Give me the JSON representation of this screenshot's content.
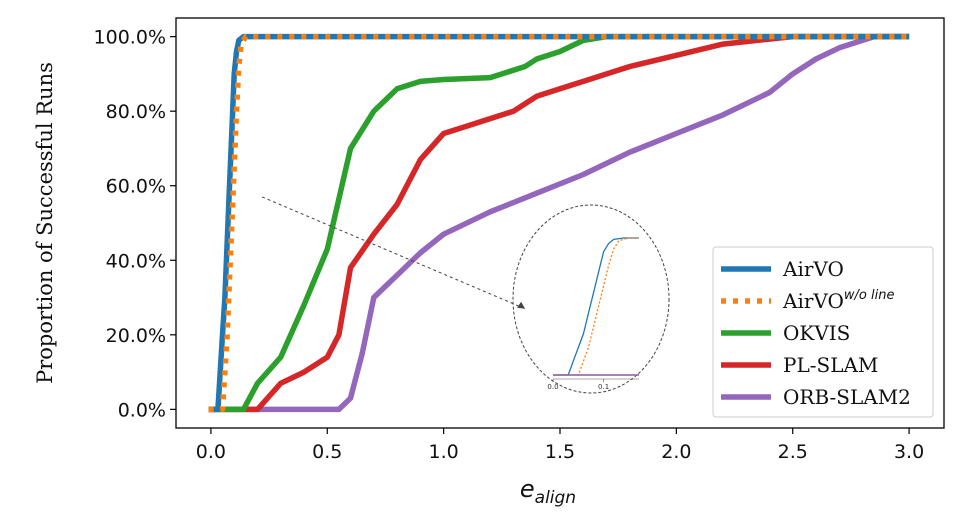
{
  "chart_data": {
    "type": "line",
    "title": "",
    "xlabel": "e",
    "xlabel_sub": "align",
    "ylabel": "Proportion of Successful Runs",
    "xlim": [
      -0.15,
      3.15
    ],
    "ylim": [
      -0.05,
      1.05
    ],
    "xticks": [
      0.0,
      0.5,
      1.0,
      1.5,
      2.0,
      2.5,
      3.0
    ],
    "xtick_labels": [
      "0.0",
      "0.5",
      "1.0",
      "1.5",
      "2.0",
      "2.5",
      "3.0"
    ],
    "yticks": [
      0.0,
      0.2,
      0.4,
      0.6,
      0.8,
      1.0
    ],
    "ytick_labels": [
      "0.0%",
      "20.0%",
      "40.0%",
      "60.0%",
      "80.0%",
      "100.0%"
    ],
    "legend_position": "lower-right",
    "series": [
      {
        "name": "AirVO",
        "label": "AirVO",
        "label_sup": "",
        "color": "#1f77b4",
        "style": "solid",
        "x": [
          -0.01,
          0.03,
          0.04,
          0.05,
          0.06,
          0.07,
          0.08,
          0.09,
          0.1,
          0.11,
          0.12,
          0.14,
          1.7,
          3.0
        ],
        "y": [
          0.0,
          0.0,
          0.1,
          0.2,
          0.3,
          0.45,
          0.6,
          0.75,
          0.9,
          0.96,
          0.99,
          1.0,
          1.0,
          1.0
        ]
      },
      {
        "name": "AirVO w/o line",
        "label": "AirVO",
        "label_sup": "w/o line",
        "color": "#ff7f0e",
        "style": "dotted",
        "x": [
          -0.01,
          0.05,
          0.06,
          0.07,
          0.08,
          0.09,
          0.1,
          0.11,
          0.12,
          0.13,
          0.15,
          1.7,
          3.0
        ],
        "y": [
          0.0,
          0.0,
          0.1,
          0.2,
          0.35,
          0.5,
          0.65,
          0.8,
          0.92,
          0.98,
          1.0,
          1.0,
          1.0
        ]
      },
      {
        "name": "OKVIS",
        "label": "OKVIS",
        "label_sup": "",
        "color": "#2ca02c",
        "style": "solid",
        "x": [
          -0.01,
          0.14,
          0.2,
          0.3,
          0.4,
          0.5,
          0.6,
          0.7,
          0.8,
          0.9,
          1.0,
          1.2,
          1.35,
          1.4,
          1.5,
          1.6,
          1.7,
          3.0
        ],
        "y": [
          0.0,
          0.0,
          0.07,
          0.14,
          0.28,
          0.43,
          0.7,
          0.8,
          0.86,
          0.88,
          0.885,
          0.89,
          0.92,
          0.94,
          0.96,
          0.99,
          1.0,
          1.0
        ]
      },
      {
        "name": "PL-SLAM",
        "label": "PL-SLAM",
        "label_sup": "",
        "color": "#d62728",
        "style": "solid",
        "x": [
          -0.01,
          0.2,
          0.3,
          0.4,
          0.5,
          0.55,
          0.6,
          0.7,
          0.8,
          0.9,
          1.0,
          1.1,
          1.2,
          1.3,
          1.4,
          1.5,
          1.6,
          1.8,
          2.0,
          2.2,
          2.5,
          2.8,
          3.0
        ],
        "y": [
          0.0,
          0.0,
          0.07,
          0.1,
          0.14,
          0.2,
          0.38,
          0.47,
          0.55,
          0.67,
          0.74,
          0.76,
          0.78,
          0.8,
          0.84,
          0.86,
          0.88,
          0.92,
          0.95,
          0.98,
          1.0,
          1.0,
          1.0
        ]
      },
      {
        "name": "ORB-SLAM2",
        "label": "ORB-SLAM2",
        "label_sup": "",
        "color": "#9467bd",
        "style": "solid",
        "x": [
          -0.01,
          0.55,
          0.6,
          0.65,
          0.7,
          0.8,
          0.9,
          1.0,
          1.2,
          1.4,
          1.6,
          1.8,
          2.0,
          2.2,
          2.4,
          2.5,
          2.6,
          2.7,
          2.8,
          2.85,
          3.0
        ],
        "y": [
          0.0,
          0.0,
          0.03,
          0.15,
          0.3,
          0.36,
          0.42,
          0.47,
          0.53,
          0.58,
          0.63,
          0.69,
          0.74,
          0.79,
          0.85,
          0.9,
          0.94,
          0.97,
          0.99,
          1.0,
          1.0
        ]
      }
    ],
    "inset": {
      "shape": "ellipse",
      "xticks": [
        0.0,
        0.1
      ],
      "xtick_labels": [
        "0.0",
        "0.1"
      ],
      "pointer_from": {
        "x": 0.22,
        "y": 0.57
      },
      "pointer_to": {
        "x": 1.35,
        "y": 0.27
      }
    }
  }
}
